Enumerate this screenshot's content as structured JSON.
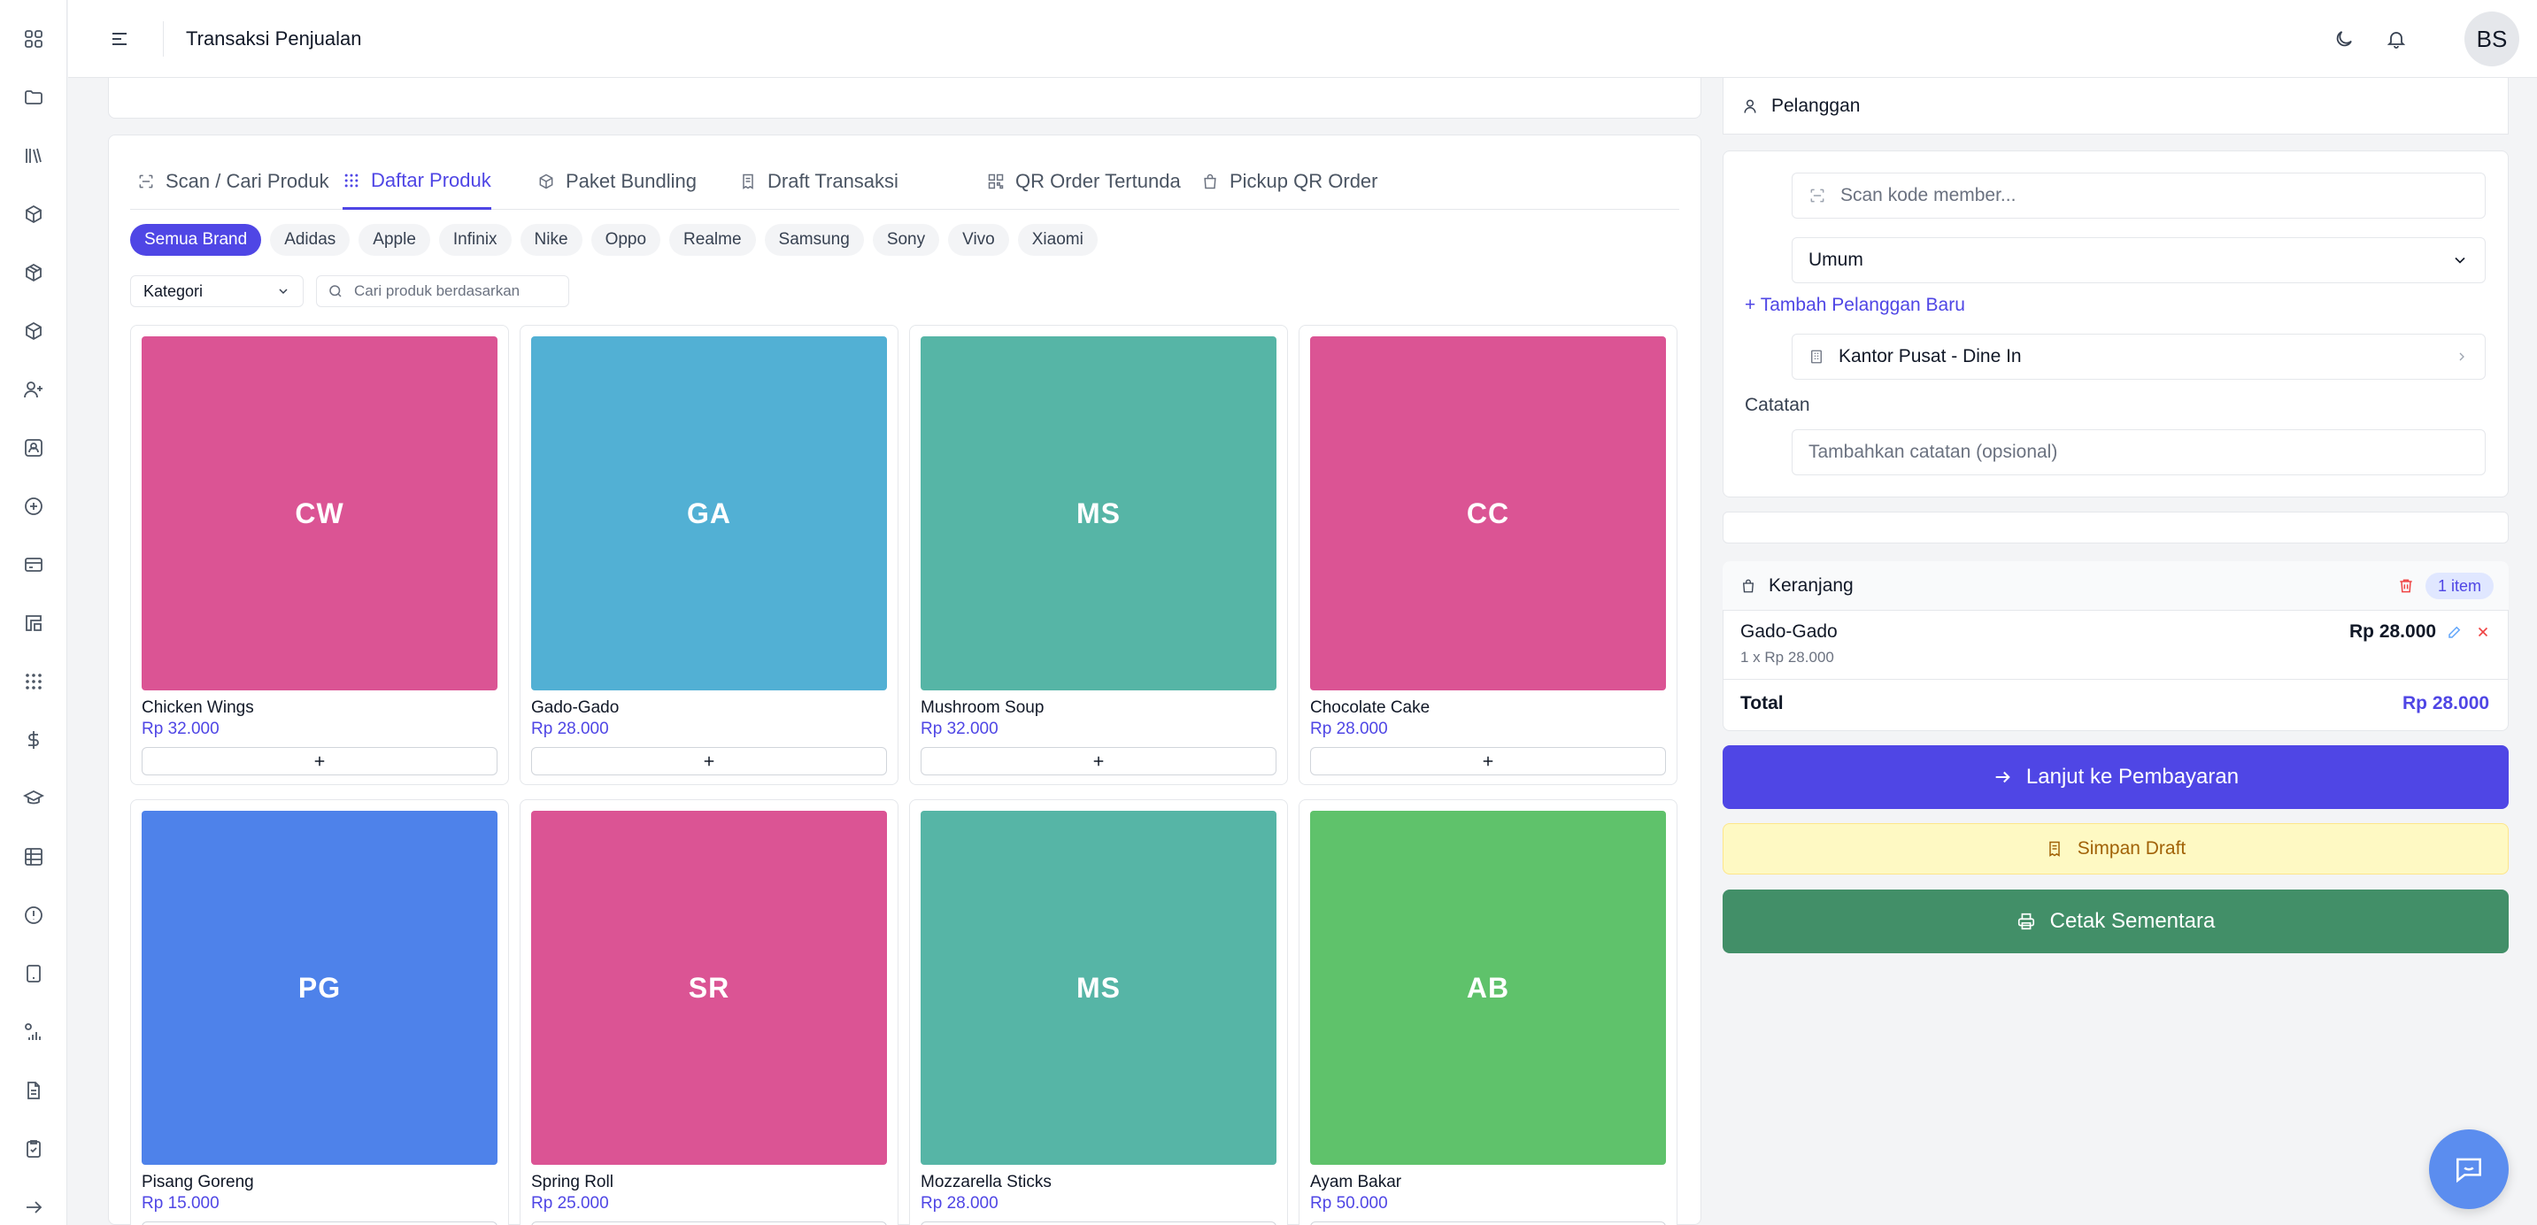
{
  "header": {
    "title": "Transaksi Penjualan",
    "avatar_initials": "BS"
  },
  "sidebar": {
    "icons": [
      "dashboard-icon",
      "folder-icon",
      "library-icon",
      "box-icon",
      "package-icon",
      "package-alt-icon",
      "user-plus-icon",
      "contact-card-icon",
      "plus-circle-icon",
      "credit-card-icon",
      "layout-icon",
      "grid-icon",
      "dollar-icon",
      "graduation-cap-icon",
      "table-icon",
      "info-circle-icon",
      "tablet-icon",
      "bar-chart-icon",
      "file-text-icon",
      "clipboard-check-icon",
      "arrow-right-icon"
    ]
  },
  "tabs": [
    {
      "label": "Scan / Cari Produk",
      "icon": "scan-icon"
    },
    {
      "label": "Daftar Produk",
      "icon": "grid-icon"
    },
    {
      "label": "Paket Bundling",
      "icon": "package-icon"
    },
    {
      "label": "Draft Transaksi",
      "icon": "receipt-icon"
    },
    {
      "label": "QR Order Tertunda",
      "icon": "qr-icon"
    },
    {
      "label": "Pickup QR Order",
      "icon": "shopping-bag-icon"
    }
  ],
  "active_tab": "Daftar Produk",
  "brands": [
    "Semua Brand",
    "Adidas",
    "Apple",
    "Infinix",
    "Nike",
    "Oppo",
    "Realme",
    "Samsung",
    "Sony",
    "Vivo",
    "Xiaomi"
  ],
  "filters": {
    "kategori_label": "Kategori",
    "search_placeholder": "Cari produk berdasarkan"
  },
  "products": [
    {
      "initials": "CW",
      "name": "Chicken Wings",
      "price": "Rp 32.000",
      "color": "#db5494"
    },
    {
      "initials": "GA",
      "name": "Gado-Gado",
      "price": "Rp 28.000",
      "color": "#52b0d4"
    },
    {
      "initials": "MS",
      "name": "Mushroom Soup",
      "price": "Rp 32.000",
      "color": "#56b5a6"
    },
    {
      "initials": "CC",
      "name": "Chocolate Cake",
      "price": "Rp 28.000",
      "color": "#db5494"
    },
    {
      "initials": "PG",
      "name": "Pisang Goreng",
      "price": "Rp 15.000",
      "color": "#4e82ea"
    },
    {
      "initials": "SR",
      "name": "Spring Roll",
      "price": "Rp 25.000",
      "color": "#db5494"
    },
    {
      "initials": "MS",
      "name": "Mozzarella Sticks",
      "price": "Rp 28.000",
      "color": "#56b5a6"
    },
    {
      "initials": "AB",
      "name": "Ayam Bakar",
      "price": "Rp 50.000",
      "color": "#5fc26b"
    }
  ],
  "customer": {
    "section_title": "Pelanggan",
    "member_placeholder": "Scan kode member...",
    "customer_select": "Umum",
    "add_customer": "+ Tambah Pelanggan Baru",
    "location": "Kantor Pusat - Dine In",
    "note_label": "Catatan",
    "note_placeholder": "Tambahkan catatan (opsional)"
  },
  "cart": {
    "title": "Keranjang",
    "count_badge": "1 item",
    "items": [
      {
        "name": "Gado-Gado",
        "detail": "1 x Rp 28.000",
        "subtotal": "Rp 28.000"
      }
    ],
    "total_label": "Total",
    "total_value": "Rp 28.000"
  },
  "actions": {
    "pay": "Lanjut ke Pembayaran",
    "draft": "Simpan Draft",
    "print": "Cetak Sementara"
  },
  "colors": {
    "accent": "#4f46e5",
    "print_button": "#428f68",
    "draft_button": "#fef9c3",
    "danger": "#ef4444"
  }
}
